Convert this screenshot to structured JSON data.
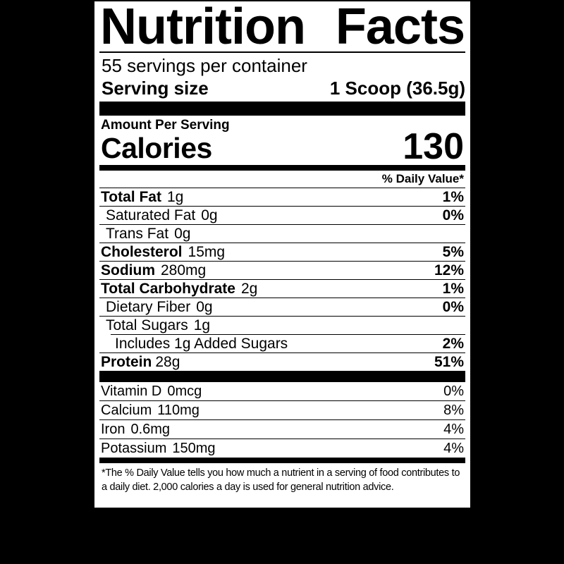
{
  "colors": {
    "background": "#000000",
    "panel": "#ffffff",
    "text": "#000000"
  },
  "label": {
    "title": "Nutrition Facts",
    "title_word_1": "Nutrition",
    "title_word_2": "Facts",
    "servings_per_container": "55 servings per container",
    "serving_size": {
      "label": "Serving size",
      "value": "1 Scoop (36.5g)"
    },
    "amount_per_serving": "Amount Per Serving",
    "calories": {
      "label": "Calories",
      "value": "130"
    },
    "daily_value_header": "% Daily Value*",
    "nutrients": [
      {
        "name": "Total Fat",
        "amount": "1g",
        "dv": "1%"
      },
      {
        "name": "Saturated Fat",
        "amount": "0g",
        "dv": "0%"
      },
      {
        "name": "Trans Fat",
        "amount": "0g",
        "dv": ""
      },
      {
        "name": "Cholesterol",
        "amount": "15mg",
        "dv": "5%"
      },
      {
        "name": "Sodium",
        "amount": "280mg",
        "dv": "12%"
      },
      {
        "name": "Total Carbohydrate",
        "amount": "2g",
        "dv": "1%"
      },
      {
        "name": "Dietary Fiber",
        "amount": "0g",
        "dv": "0%"
      },
      {
        "name": "Total Sugars",
        "amount": "1g",
        "dv": ""
      },
      {
        "name": "Includes 1g Added Sugars",
        "amount": "",
        "dv": "2%"
      },
      {
        "name": "Protein",
        "amount": "28g",
        "dv": "51%"
      }
    ],
    "micronutrients": [
      {
        "name": "Vitamin D",
        "amount": "0mcg",
        "dv": "0%"
      },
      {
        "name": "Calcium",
        "amount": "110mg",
        "dv": "8%"
      },
      {
        "name": "Iron",
        "amount": "0.6mg",
        "dv": "4%"
      },
      {
        "name": "Potassium",
        "amount": "150mg",
        "dv": "4%"
      }
    ],
    "footnote": "*The % Daily Value tells you how much a nutrient in a serving of food contributes to a daily diet. 2,000 calories a day is used for general nutrition advice."
  }
}
